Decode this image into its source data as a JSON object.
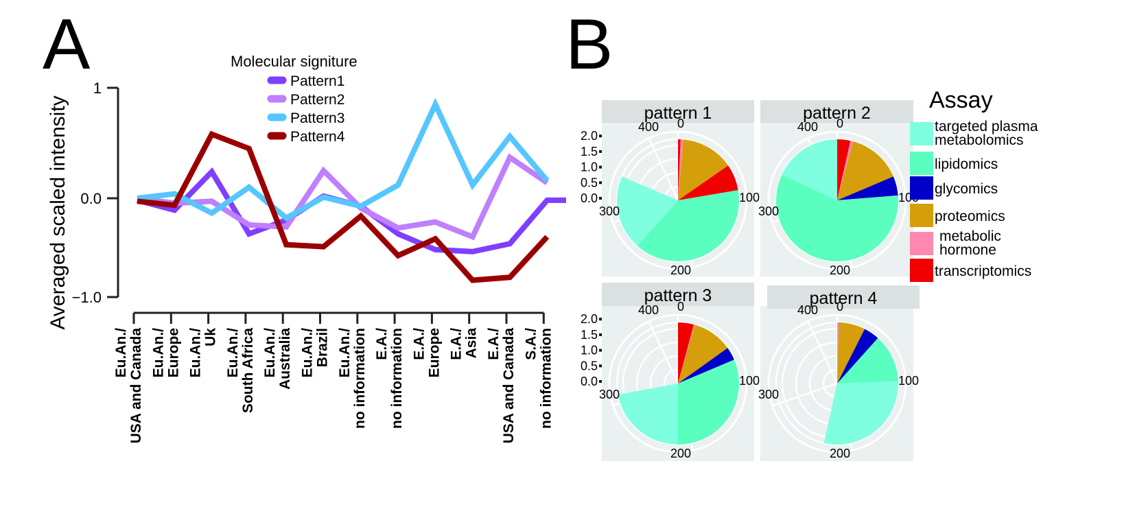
{
  "panels": {
    "a_label": "A",
    "b_label": "B"
  },
  "chart_data": [
    {
      "type": "line",
      "panel": "A",
      "title": "",
      "xlabel": "",
      "ylabel": "Averaged scaled intensity",
      "ylim": [
        -1.0,
        1.0
      ],
      "yticks": [
        {
          "value": 1,
          "label": "1"
        },
        {
          "value": 0,
          "label": "0.0"
        },
        {
          "value": -1,
          "label": "−1.0"
        }
      ],
      "grid": false,
      "legend": {
        "title": "Molecular signiture",
        "position": "top-center"
      },
      "categories": [
        [
          "Eu.An./",
          "USA and Canada"
        ],
        [
          "Eu.An./",
          "Europe"
        ],
        [
          "Eu.An./",
          "Uk"
        ],
        [
          "Eu.An./",
          "South Africa"
        ],
        [
          "Eu.An./",
          "Australia"
        ],
        [
          "Eu.An./",
          "Brazil"
        ],
        [
          "Eu.An./",
          "no information"
        ],
        [
          "E.A./",
          "no information"
        ],
        [
          "E.A./",
          "Europe"
        ],
        [
          "E.A./",
          "Asia"
        ],
        [
          "E.A./",
          "USA and Canada"
        ],
        [
          "S.A./",
          "no information"
        ]
      ],
      "series": [
        {
          "name": "Pattern1",
          "color": "#7f3fff",
          "values": [
            -0.02,
            -0.12,
            0.24,
            -0.36,
            -0.22,
            0.02,
            -0.08,
            -0.36,
            -0.52,
            -0.54,
            -0.46,
            -0.02
          ],
          "extend_flat_after": -0.02
        },
        {
          "name": "Pattern2",
          "color": "#bf7fff",
          "values": [
            0.0,
            -0.05,
            -0.03,
            -0.27,
            -0.29,
            0.25,
            -0.1,
            -0.3,
            -0.24,
            -0.39,
            0.37,
            0.14
          ]
        },
        {
          "name": "Pattern3",
          "color": "#55c6ff",
          "values": [
            0.0,
            0.04,
            -0.15,
            0.1,
            -0.2,
            0.01,
            -0.08,
            0.12,
            0.85,
            0.12,
            0.56,
            0.16
          ]
        },
        {
          "name": "Pattern4",
          "color": "#9a0000",
          "values": [
            -0.03,
            -0.07,
            0.58,
            0.45,
            -0.47,
            -0.49,
            -0.18,
            -0.58,
            -0.41,
            -0.83,
            -0.8,
            -0.39
          ]
        }
      ]
    },
    {
      "type": "pie",
      "panel": "B",
      "coord": "polar",
      "legend": {
        "title": "Assay",
        "position": "right"
      },
      "radial_ticks": [
        "0.0",
        "0.5",
        "1.0",
        "1.5",
        "2.0"
      ],
      "angular_ticks": [
        "0",
        "100",
        "200",
        "300",
        "400"
      ],
      "angular_max": 430,
      "assays": [
        {
          "name": "targeted plasma metabolomics",
          "lines": [
            "targeted plasma",
            "metabolomics"
          ],
          "color": "#7fffdf"
        },
        {
          "name": "lipidomics",
          "lines": [
            "lipidomics"
          ],
          "color": "#5affbf"
        },
        {
          "name": "glycomics",
          "lines": [
            "glycomics"
          ],
          "color": "#0000c8"
        },
        {
          "name": "proteomics",
          "lines": [
            "proteomics"
          ],
          "color": "#d49f0a"
        },
        {
          "name": "metabolic hormone",
          "lines": [
            "metabolic",
            "hormone"
          ],
          "color": "#ff88b0"
        },
        {
          "name": "transcriptomics",
          "lines": [
            "transcriptomics"
          ],
          "color": "#f00000"
        }
      ],
      "facets": [
        {
          "title": "pattern 1",
          "show_radial_axis": true,
          "slices": [
            {
              "assay": "transcriptomics",
              "value": 3
            },
            {
              "assay": "metabolic hormone",
              "value": 3
            },
            {
              "assay": "proteomics",
              "value": 60
            },
            {
              "assay": "transcriptomics",
              "value": 30
            },
            {
              "assay": "lipidomics",
              "value": 169
            },
            {
              "assay": "targeted plasma metabolomics",
              "value": 85
            }
          ]
        },
        {
          "title": "pattern 2",
          "show_radial_axis": false,
          "slices": [
            {
              "assay": "transcriptomics",
              "value": 15
            },
            {
              "assay": "metabolic hormone",
              "value": 3
            },
            {
              "assay": "proteomics",
              "value": 62
            },
            {
              "assay": "glycomics",
              "value": 22
            },
            {
              "assay": "lipidomics",
              "value": 250
            },
            {
              "assay": "targeted plasma metabolomics",
              "value": 78
            }
          ]
        },
        {
          "title": "pattern 3",
          "show_radial_axis": true,
          "slices": [
            {
              "assay": "transcriptomics",
              "value": 18
            },
            {
              "assay": "metabolic hormone",
              "value": 1
            },
            {
              "assay": "proteomics",
              "value": 46
            },
            {
              "assay": "glycomics",
              "value": 15
            },
            {
              "assay": "lipidomics",
              "value": 135
            },
            {
              "assay": "targeted plasma metabolomics",
              "value": 95
            }
          ]
        },
        {
          "title": "pattern 4",
          "show_radial_axis": false,
          "slices": [
            {
              "assay": "metabolic hormone",
              "value": 2
            },
            {
              "assay": "proteomics",
              "value": 30
            },
            {
              "assay": "glycomics",
              "value": 18
            },
            {
              "assay": "lipidomics",
              "value": 55
            },
            {
              "assay": "targeted plasma metabolomics",
              "value": 125
            }
          ]
        }
      ]
    }
  ]
}
